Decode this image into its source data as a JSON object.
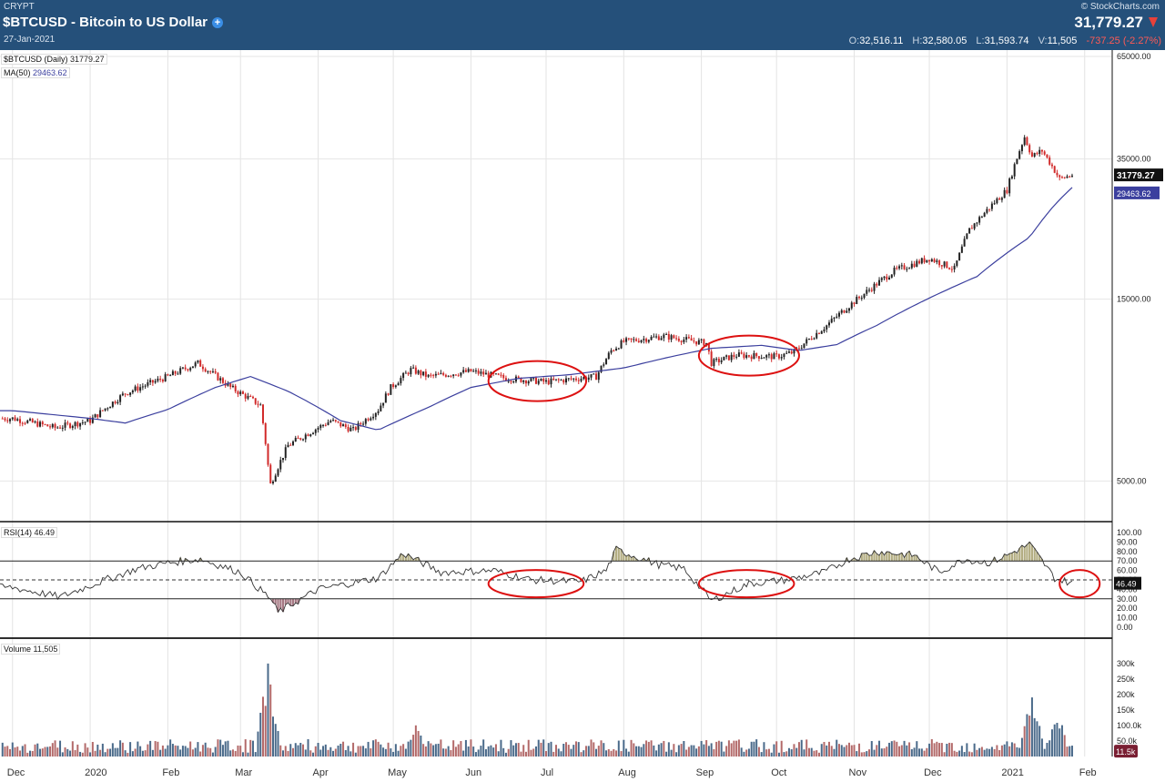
{
  "header": {
    "exchange": "CRYPT",
    "title": "$BTCUSD - Bitcoin to US Dollar",
    "date": "27-Jan-2021",
    "brand": "© StockCharts.com",
    "last_price": "31,779.27",
    "ohlc": [
      {
        "label": "O:",
        "value": "32,516.11"
      },
      {
        "label": "H:",
        "value": "32,580.05"
      },
      {
        "label": "L:",
        "value": "31,593.74"
      },
      {
        "label": "V:",
        "value": "11,505"
      }
    ],
    "change": "-737.25 (-2.27%)"
  },
  "legends": {
    "price_name": "$BTCUSD (Daily)",
    "price_value": "31779.27",
    "ma_name": "MA(50)",
    "ma_value": "29463.62",
    "rsi_name": "RSI(14)",
    "rsi_value": "46.49",
    "vol_name": "Volume",
    "vol_value": "11,505"
  },
  "colors": {
    "up": "#222222",
    "down": "#d12a2a",
    "ma": "#3b3f9e",
    "ellipse": "#dd1111",
    "rsi_overbought": "#b3ad82",
    "rsi_oversold": "#a57883",
    "vol_up": "#4a6a8a",
    "vol_down": "#b36a6a"
  },
  "chart_data": [
    {
      "type": "line",
      "panel": "price",
      "title": "$BTCUSD (Daily)",
      "yscale": "log",
      "ylim": [
        4000,
        65000
      ],
      "yticks": [
        "65000.00",
        "35000.00",
        "15000.00",
        "5000.00"
      ],
      "last_label": "31779.27",
      "ma_label": "29463.62",
      "months": [
        "Dec",
        "2020",
        "Feb",
        "Mar",
        "Apr",
        "May",
        "Jun",
        "Jul",
        "Aug",
        "Sep",
        "Oct",
        "Nov",
        "Dec",
        "2021",
        "Feb"
      ],
      "series": [
        {
          "name": "$BTCUSD",
          "x": [
            "2019-12-01",
            "2019-12-18",
            "2020-01-01",
            "2020-01-15",
            "2020-02-01",
            "2020-02-13",
            "2020-02-26",
            "2020-03-09",
            "2020-03-12",
            "2020-03-13",
            "2020-03-20",
            "2020-04-06",
            "2020-04-15",
            "2020-04-25",
            "2020-04-30",
            "2020-05-08",
            "2020-05-15",
            "2020-06-01",
            "2020-06-15",
            "2020-07-01",
            "2020-07-21",
            "2020-07-27",
            "2020-08-01",
            "2020-08-17",
            "2020-09-03",
            "2020-09-05",
            "2020-09-15",
            "2020-10-01",
            "2020-10-08",
            "2020-10-21",
            "2020-11-05",
            "2020-11-17",
            "2020-12-01",
            "2020-12-11",
            "2020-12-17",
            "2021-01-01",
            "2021-01-08",
            "2021-01-11",
            "2021-01-15",
            "2021-01-22",
            "2021-01-27"
          ],
          "values": [
            7300,
            6900,
            7200,
            8500,
            9400,
            10200,
            8800,
            7900,
            5500,
            4900,
            6200,
            7200,
            6800,
            7700,
            8800,
            9800,
            9400,
            9700,
            9300,
            9100,
            9400,
            11000,
            11600,
            12000,
            11500,
            10200,
            10700,
            10600,
            10900,
            12800,
            15500,
            17800,
            19200,
            18000,
            22800,
            29000,
            40000,
            35500,
            36800,
            31000,
            31779.27
          ]
        },
        {
          "name": "MA(50)",
          "x": [
            "2019-12-01",
            "2020-01-01",
            "2020-01-15",
            "2020-02-01",
            "2020-02-20",
            "2020-03-05",
            "2020-03-20",
            "2020-04-10",
            "2020-04-25",
            "2020-05-15",
            "2020-06-01",
            "2020-06-20",
            "2020-07-10",
            "2020-08-01",
            "2020-08-20",
            "2020-09-05",
            "2020-09-25",
            "2020-10-10",
            "2020-10-25",
            "2020-11-10",
            "2020-12-01",
            "2020-12-20",
            "2021-01-10",
            "2021-01-20",
            "2021-01-27"
          ],
          "values": [
            7650,
            7300,
            7100,
            7700,
            8800,
            9400,
            8600,
            7200,
            6800,
            7800,
            8800,
            9300,
            9500,
            9900,
            10600,
            11150,
            11350,
            11000,
            11400,
            12800,
            15100,
            17200,
            21800,
            26500,
            29463.62
          ]
        }
      ]
    },
    {
      "type": "area",
      "panel": "rsi",
      "title": "RSI(14)",
      "ylim": [
        0,
        100
      ],
      "yticks": [
        "100.00",
        "90.00",
        "80.00",
        "70.00",
        "60.00",
        "50.00",
        "40.00",
        "30.00",
        "20.00",
        "10.00",
        "0.00"
      ],
      "levels": [
        70,
        50,
        30
      ],
      "last_label": "46.49",
      "series": [
        {
          "name": "RSI(14)",
          "x": [
            "2019-12-01",
            "2019-12-20",
            "2020-01-05",
            "2020-01-20",
            "2020-02-01",
            "2020-02-14",
            "2020-03-01",
            "2020-03-13",
            "2020-03-16",
            "2020-04-01",
            "2020-04-25",
            "2020-05-05",
            "2020-05-20",
            "2020-06-10",
            "2020-06-25",
            "2020-07-15",
            "2020-07-25",
            "2020-07-29",
            "2020-08-15",
            "2020-08-25",
            "2020-09-05",
            "2020-09-20",
            "2020-10-05",
            "2020-10-20",
            "2020-10-30",
            "2020-11-10",
            "2020-11-25",
            "2020-12-05",
            "2020-12-15",
            "2020-12-25",
            "2021-01-01",
            "2021-01-10",
            "2021-01-20",
            "2021-01-27"
          ],
          "values": [
            42,
            32,
            48,
            62,
            68,
            72,
            58,
            30,
            16,
            40,
            52,
            78,
            58,
            60,
            50,
            48,
            60,
            82,
            66,
            62,
            28,
            46,
            50,
            58,
            72,
            80,
            76,
            58,
            72,
            68,
            76,
            88,
            52,
            46.49
          ]
        }
      ]
    },
    {
      "type": "bar",
      "panel": "volume",
      "title": "Volume",
      "ylim": [
        0,
        300000
      ],
      "yticks": [
        "300k",
        "250k",
        "200k",
        "150k",
        "100.0k",
        "50.0k"
      ],
      "last_label": "11.5k",
      "peaks": {
        "x": [
          "2020-03-12",
          "2020-05-10",
          "2021-01-11",
          "2021-01-21"
        ],
        "values": [
          310000,
          120000,
          240000,
          160000
        ]
      },
      "typical_value": 40000
    }
  ],
  "annotations": [
    {
      "type": "ellipse",
      "panel": "price",
      "x_from": "2020-06-08",
      "x_to": "2020-07-17"
    },
    {
      "type": "ellipse",
      "panel": "price",
      "x_from": "2020-08-31",
      "x_to": "2020-10-10"
    },
    {
      "type": "ellipse",
      "panel": "rsi",
      "x_from": "2020-06-08",
      "x_to": "2020-07-16"
    },
    {
      "type": "ellipse",
      "panel": "rsi",
      "x_from": "2020-08-31",
      "x_to": "2020-10-08"
    },
    {
      "type": "ellipse",
      "panel": "rsi",
      "x_from": "2021-01-22",
      "x_to": "2021-02-07"
    }
  ]
}
